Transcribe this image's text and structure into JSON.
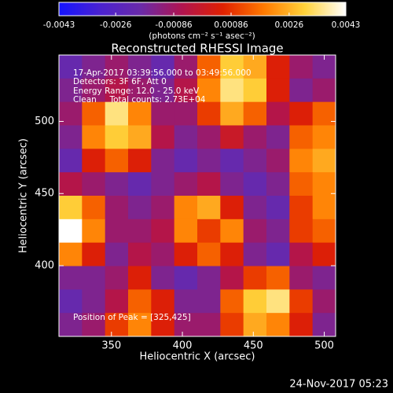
{
  "chart_data": {
    "type": "heatmap",
    "title": "Reconstructed RHESSI Image",
    "xlabel": "Heliocentric X (arcsec)",
    "ylabel": "Heliocentric Y (arcsec)",
    "colorbar_label": "(photons cm⁻² s⁻¹ asec⁻²)",
    "annotations": [
      "17-Apr-2017 03:39:56.000 to 03:49:56.000",
      "Detectors: 3F 6F, Att 0",
      "Energy Range: 12.0 - 25.0 keV",
      "Clean     Total counts: 2.73E+04"
    ],
    "peak_label": "Position of Peak = [325,425]",
    "footer": "24-Nov-2017 05:23",
    "xlim": [
      313,
      508
    ],
    "ylim": [
      351,
      546
    ],
    "xticks": [
      350,
      400,
      450,
      500
    ],
    "yticks": [
      400,
      450,
      500
    ],
    "clim": [
      -0.0043,
      0.0043
    ],
    "cticks": [
      -0.0043,
      -0.0026,
      -0.00086,
      0.00086,
      0.0026,
      0.0043
    ],
    "colormap": [
      "#1414ff",
      "#4a22d0",
      "#6a2aa8",
      "#b01450",
      "#e02000",
      "#ff7a00",
      "#ffd23a",
      "#ffffff"
    ],
    "z": [
      [
        -0.002,
        -0.0015,
        -0.001,
        -0.0015,
        -0.002,
        -0.001,
        0.0015,
        0.003,
        0.0025,
        0.0005,
        -0.001,
        -0.0015
      ],
      [
        -0.0015,
        -0.001,
        -0.0005,
        -0.001,
        -0.0015,
        -0.0005,
        0.002,
        0.0035,
        0.003,
        0.0005,
        -0.0015,
        -0.001
      ],
      [
        -0.001,
        0.0015,
        0.0035,
        0.002,
        -0.001,
        -0.001,
        0.001,
        0.0025,
        0.0015,
        -0.0005,
        0.0005,
        0.0015
      ],
      [
        -0.0015,
        0.002,
        0.003,
        0.0025,
        -0.0005,
        -0.0015,
        -0.001,
        0.0,
        -0.001,
        -0.0015,
        0.0015,
        0.002
      ],
      [
        -0.002,
        0.0005,
        0.0015,
        0.0005,
        -0.0015,
        -0.002,
        -0.0015,
        -0.002,
        -0.0015,
        -0.001,
        0.002,
        0.0025
      ],
      [
        -0.0005,
        -0.001,
        -0.0015,
        -0.002,
        -0.0015,
        -0.001,
        -0.0005,
        -0.0015,
        -0.002,
        -0.0015,
        0.0015,
        0.002
      ],
      [
        0.003,
        0.0015,
        -0.001,
        -0.0015,
        -0.001,
        0.002,
        0.0025,
        0.0005,
        -0.0015,
        -0.002,
        0.001,
        0.002
      ],
      [
        0.0043,
        0.002,
        -0.001,
        -0.001,
        -0.0005,
        0.002,
        0.001,
        0.002,
        -0.001,
        -0.0015,
        0.001,
        0.0015
      ],
      [
        0.002,
        0.0005,
        -0.0015,
        -0.0005,
        -0.001,
        0.0005,
        0.0015,
        0.0005,
        -0.0015,
        -0.002,
        -0.0005,
        0.0005
      ],
      [
        -0.0015,
        -0.0015,
        -0.001,
        0.0005,
        -0.0015,
        -0.002,
        -0.0015,
        -0.0005,
        0.001,
        0.0015,
        -0.001,
        -0.0015
      ],
      [
        -0.002,
        -0.0015,
        -0.0005,
        0.0015,
        0.0005,
        -0.0015,
        -0.0015,
        0.0015,
        0.003,
        0.0035,
        0.001,
        -0.001
      ],
      [
        -0.0015,
        -0.001,
        0.001,
        0.002,
        0.0005,
        -0.001,
        -0.001,
        0.001,
        0.0025,
        0.002,
        0.0005,
        -0.0015
      ]
    ]
  }
}
